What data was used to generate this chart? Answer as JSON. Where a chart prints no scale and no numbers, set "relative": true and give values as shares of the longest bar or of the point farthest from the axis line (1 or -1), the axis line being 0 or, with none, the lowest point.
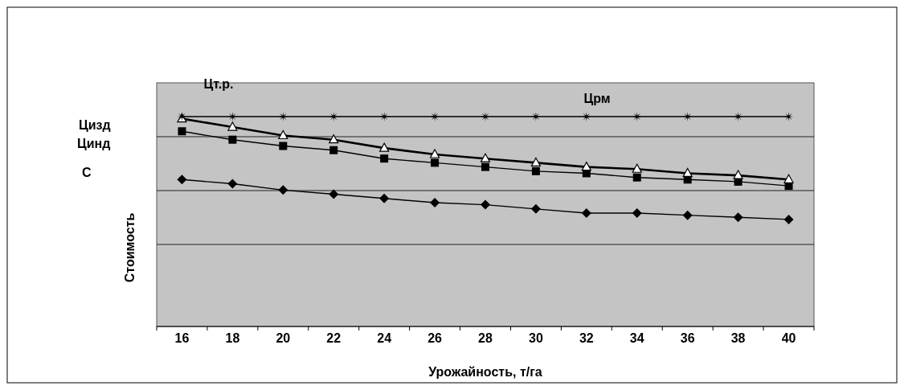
{
  "chart_data": {
    "type": "line",
    "relative": true,
    "xlabel": "Урожайность, т/га",
    "ylabel": "Стоимость",
    "categories": [
      "16",
      "18",
      "20",
      "22",
      "24",
      "26",
      "28",
      "30",
      "32",
      "34",
      "36",
      "38",
      "40"
    ],
    "grid": "y",
    "line_style": "solid",
    "series": [
      {
        "color": "#000000",
        "marker": "star",
        "values": [
          1,
          1,
          1,
          1,
          1,
          1,
          1,
          1,
          1,
          1,
          1,
          1,
          1
        ]
      },
      {
        "color": "#000000",
        "marker": "triangle",
        "values": [
          0.99,
          0.95,
          0.91,
          0.89,
          0.85,
          0.82,
          0.8,
          0.78,
          0.76,
          0.75,
          0.73,
          0.72,
          0.7
        ]
      },
      {
        "color": "#000000",
        "marker": "square",
        "values": [
          0.93,
          0.89,
          0.86,
          0.84,
          0.8,
          0.78,
          0.76,
          0.74,
          0.73,
          0.71,
          0.7,
          0.69,
          0.67
        ]
      },
      {
        "color": "#000000",
        "marker": "diamond",
        "values": [
          0.7,
          0.68,
          0.65,
          0.63,
          0.61,
          0.59,
          0.58,
          0.56,
          0.54,
          0.54,
          0.53,
          0.52,
          0.51
        ]
      }
    ],
    "annotations": [
      "Цт.р.",
      "Цизд",
      "Цинд",
      "С",
      "Црм"
    ]
  }
}
